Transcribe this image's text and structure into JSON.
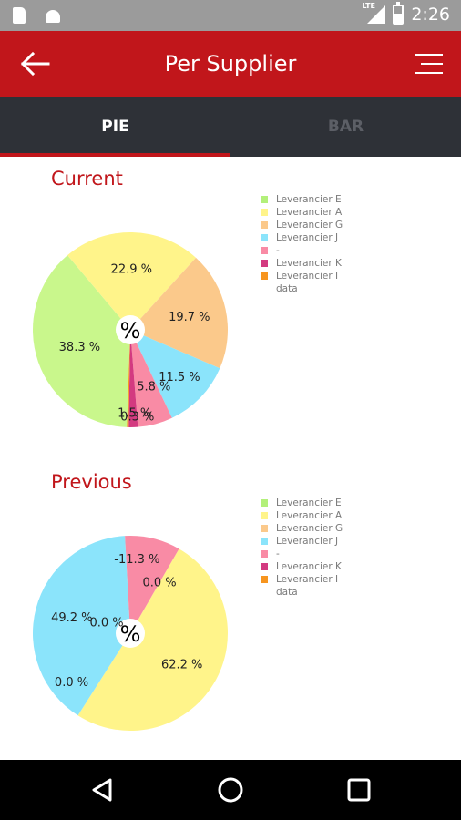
{
  "status_bar": {
    "time": "2:26",
    "network": "LTE",
    "icons": [
      "sd-card-icon",
      "android-debug-icon",
      "signal-icon",
      "battery-icon"
    ]
  },
  "app_bar": {
    "title": "Per Supplier",
    "back_icon": "arrow-left-icon",
    "menu_icon": "menu-icon",
    "color": "#c1161b"
  },
  "tabs": [
    {
      "label": "PIE",
      "active": true
    },
    {
      "label": "BAR",
      "active": false
    }
  ],
  "center_label": "%",
  "chart_data": [
    {
      "type": "pie",
      "title": "Current",
      "legend": [
        {
          "label": "Leverancier E",
          "color": "#b3f07a"
        },
        {
          "label": "Leverancier A",
          "color": "#fff48a"
        },
        {
          "label": "Leverancier G",
          "color": "#fbc98b"
        },
        {
          "label": "Leverancier J",
          "color": "#8be4fb"
        },
        {
          "label": "-",
          "color": "#f98ba5"
        },
        {
          "label": "Leverancier K",
          "color": "#d33a80"
        },
        {
          "label": "Leverancier I",
          "color": "#f7951f"
        }
      ],
      "legend_suffix": "data",
      "slices": [
        {
          "label": "Leverancier E",
          "value": 38.3,
          "text": "38.3 %",
          "color": "#c9f78c"
        },
        {
          "label": "Leverancier A",
          "value": 22.9,
          "text": "22.9 %",
          "color": "#fff48a"
        },
        {
          "label": "Leverancier G",
          "value": 19.7,
          "text": "19.7 %",
          "color": "#fbc98b"
        },
        {
          "label": "Leverancier J",
          "value": 11.5,
          "text": "11.5 %",
          "color": "#8be4fb"
        },
        {
          "label": "-",
          "value": 5.8,
          "text": "5.8 %",
          "color": "#f98ba5"
        },
        {
          "label": "Leverancier K",
          "value": 1.5,
          "text": "1.5 %",
          "color": "#d33a80"
        },
        {
          "label": "Leverancier I",
          "value": 0.3,
          "text": "0.3 %",
          "color": "#f7951f"
        }
      ]
    },
    {
      "type": "pie",
      "title": "Previous",
      "legend": [
        {
          "label": "Leverancier E",
          "color": "#b3f07a"
        },
        {
          "label": "Leverancier A",
          "color": "#fff48a"
        },
        {
          "label": "Leverancier G",
          "color": "#fbc98b"
        },
        {
          "label": "Leverancier J",
          "color": "#8be4fb"
        },
        {
          "label": "-",
          "color": "#f98ba5"
        },
        {
          "label": "Leverancier K",
          "color": "#d33a80"
        },
        {
          "label": "Leverancier I",
          "color": "#f7951f"
        }
      ],
      "legend_suffix": "data",
      "slices": [
        {
          "label": "Leverancier E",
          "value": 0.0,
          "text": "0.0 %",
          "color": "#c9f78c"
        },
        {
          "label": "Leverancier A",
          "value": 62.2,
          "text": "62.2 %",
          "color": "#fff48a"
        },
        {
          "label": "Leverancier G",
          "value": 0.0,
          "text": "0.0 %",
          "color": "#fbc98b"
        },
        {
          "label": "Leverancier J",
          "value": 49.2,
          "text": "49.2 %",
          "color": "#8be4fb"
        },
        {
          "label": "-",
          "value": -11.3,
          "text": "-11.3 %",
          "color": "#f98ba5"
        },
        {
          "label": "Leverancier K",
          "value": 0.0,
          "text": "0.0 %",
          "color": "#d33a80"
        }
      ]
    }
  ],
  "nav_bar": {
    "icons": [
      "back-triangle-icon",
      "home-circle-icon",
      "recents-square-icon"
    ]
  }
}
